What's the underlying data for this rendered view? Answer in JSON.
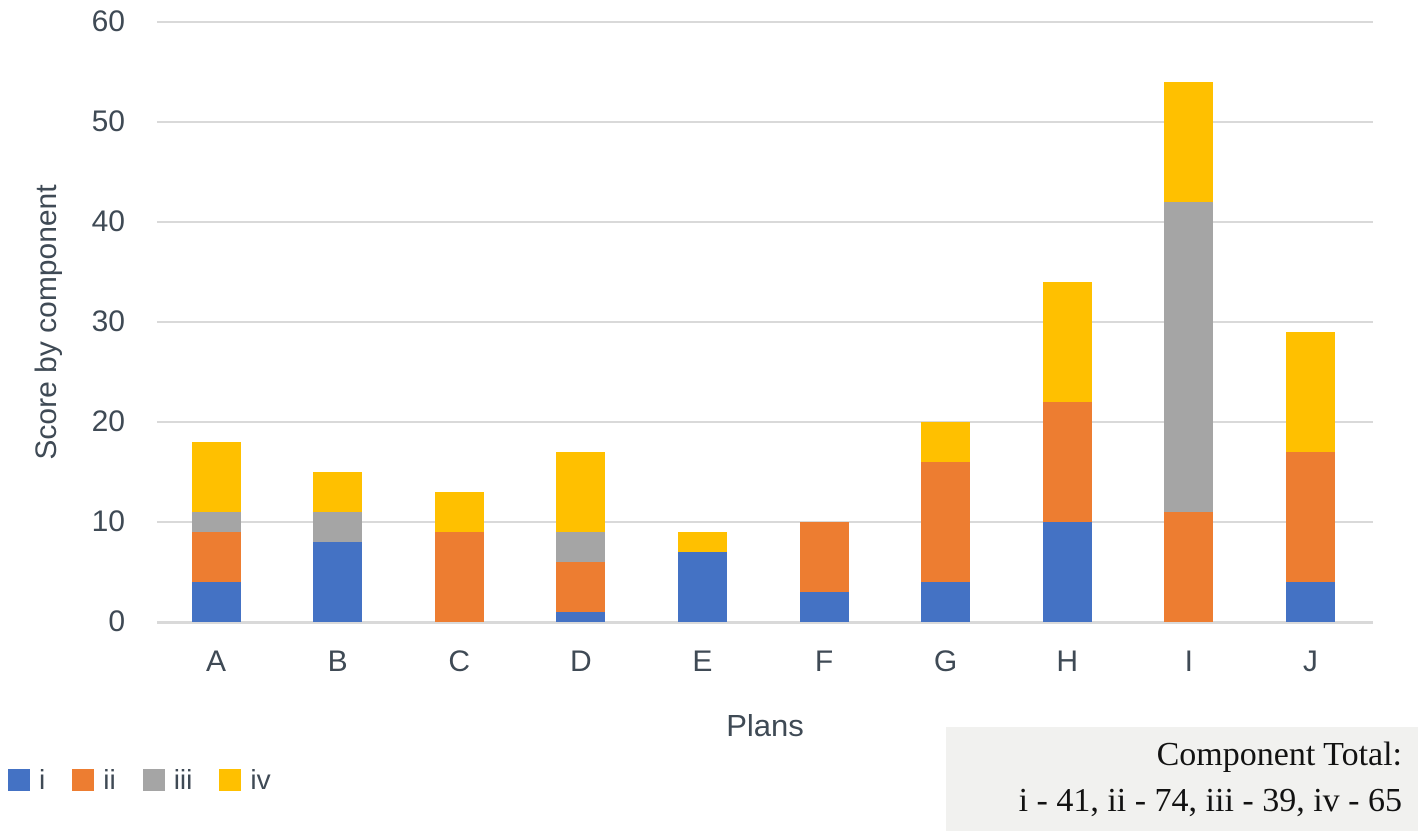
{
  "chart_data": {
    "type": "bar",
    "stacked": true,
    "title": "",
    "xlabel": "Plans",
    "ylabel": "Score by component",
    "categories": [
      "A",
      "B",
      "C",
      "D",
      "E",
      "F",
      "G",
      "H",
      "I",
      "J"
    ],
    "series": [
      {
        "name": "i",
        "color": "#4472C4",
        "values": [
          4,
          8,
          0,
          1,
          7,
          3,
          4,
          10,
          0,
          4
        ]
      },
      {
        "name": "ii",
        "color": "#ED7D31",
        "values": [
          5,
          0,
          9,
          5,
          0,
          7,
          12,
          12,
          11,
          13
        ]
      },
      {
        "name": "iii",
        "color": "#A5A5A5",
        "values": [
          2,
          3,
          0,
          3,
          0,
          0,
          0,
          0,
          31,
          0
        ]
      },
      {
        "name": "iv",
        "color": "#FFC000",
        "values": [
          7,
          4,
          4,
          8,
          2,
          0,
          4,
          12,
          12,
          12
        ]
      }
    ],
    "stack_totals": [
      18,
      15,
      13,
      17,
      9,
      10,
      20,
      34,
      54,
      29
    ],
    "ylim": [
      0,
      60
    ],
    "yticks": [
      0,
      10,
      20,
      30,
      40,
      50,
      60
    ],
    "grid": true,
    "gridline_color": "#d9d9d9",
    "legend_position": "bottom-left",
    "legend_entries": [
      "i",
      "ii",
      "iii",
      "iv"
    ]
  },
  "annotation_box": {
    "title": "Component Total:",
    "values": "i - 41, ii - 74, iii - 39, iv - 65",
    "background": "#f1f1ef"
  },
  "colors": {
    "series_i": "#4472C4",
    "series_ii": "#ED7D31",
    "series_iii": "#A5A5A5",
    "series_iv": "#FFC000",
    "gridline": "#d9d9d9",
    "axis_text": "#3f4a55",
    "annotation_text": "#121212"
  }
}
